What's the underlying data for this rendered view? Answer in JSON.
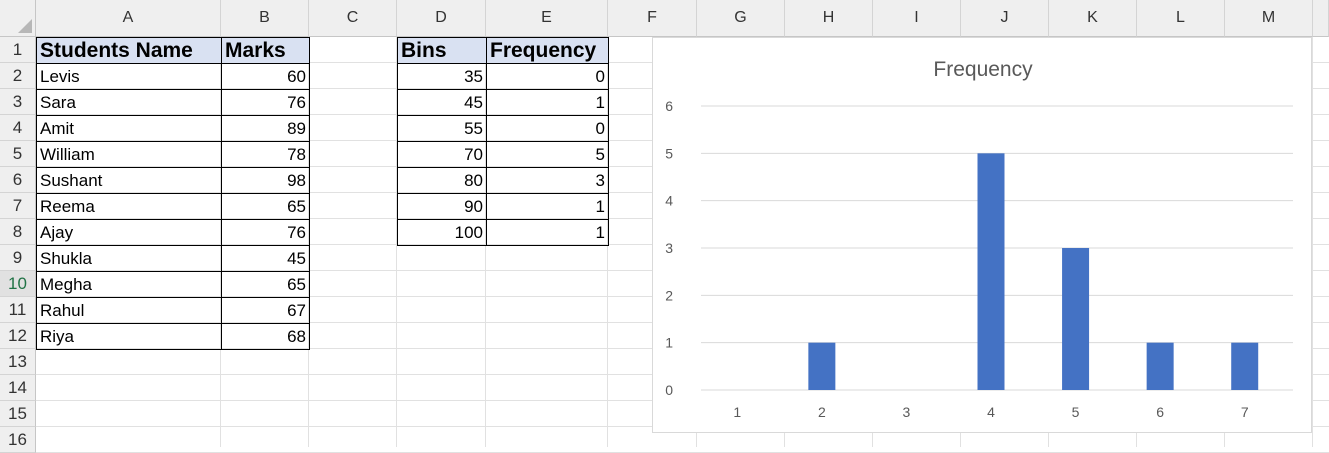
{
  "columns": [
    "A",
    "B",
    "C",
    "D",
    "E",
    "F",
    "G",
    "H",
    "I",
    "J",
    "K",
    "L",
    "M"
  ],
  "rows": [
    "1",
    "2",
    "3",
    "4",
    "5",
    "6",
    "7",
    "8",
    "9",
    "10",
    "11",
    "12",
    "13",
    "14",
    "15",
    "16"
  ],
  "selected_row": "10",
  "students": {
    "header_name": "Students Name",
    "header_marks": "Marks",
    "rows": [
      {
        "name": "Levis",
        "marks": "60"
      },
      {
        "name": "Sara",
        "marks": "76"
      },
      {
        "name": "Amit",
        "marks": "89"
      },
      {
        "name": "William",
        "marks": "78"
      },
      {
        "name": "Sushant",
        "marks": "98"
      },
      {
        "name": "Reema",
        "marks": "65"
      },
      {
        "name": "Ajay",
        "marks": "76"
      },
      {
        "name": "Shukla",
        "marks": "45"
      },
      {
        "name": "Megha",
        "marks": "65"
      },
      {
        "name": "Rahul",
        "marks": "67"
      },
      {
        "name": "Riya",
        "marks": "68"
      }
    ]
  },
  "bins_table": {
    "header_bins": "Bins",
    "header_freq": "Frequency",
    "rows": [
      {
        "bin": "35",
        "freq": "0"
      },
      {
        "bin": "45",
        "freq": "1"
      },
      {
        "bin": "55",
        "freq": "0"
      },
      {
        "bin": "70",
        "freq": "5"
      },
      {
        "bin": "80",
        "freq": "3"
      },
      {
        "bin": "90",
        "freq": "1"
      },
      {
        "bin": "100",
        "freq": "1"
      }
    ]
  },
  "chart_data": {
    "type": "bar",
    "title": "Frequency",
    "categories": [
      "1",
      "2",
      "3",
      "4",
      "5",
      "6",
      "7"
    ],
    "values": [
      0,
      1,
      0,
      5,
      3,
      1,
      1
    ],
    "ylim": [
      0,
      6
    ],
    "yticks": [
      "0",
      "1",
      "2",
      "3",
      "4",
      "5",
      "6"
    ],
    "grid": true,
    "bar_color": "#4472c4",
    "gridline_color": "#d9d9d9"
  }
}
